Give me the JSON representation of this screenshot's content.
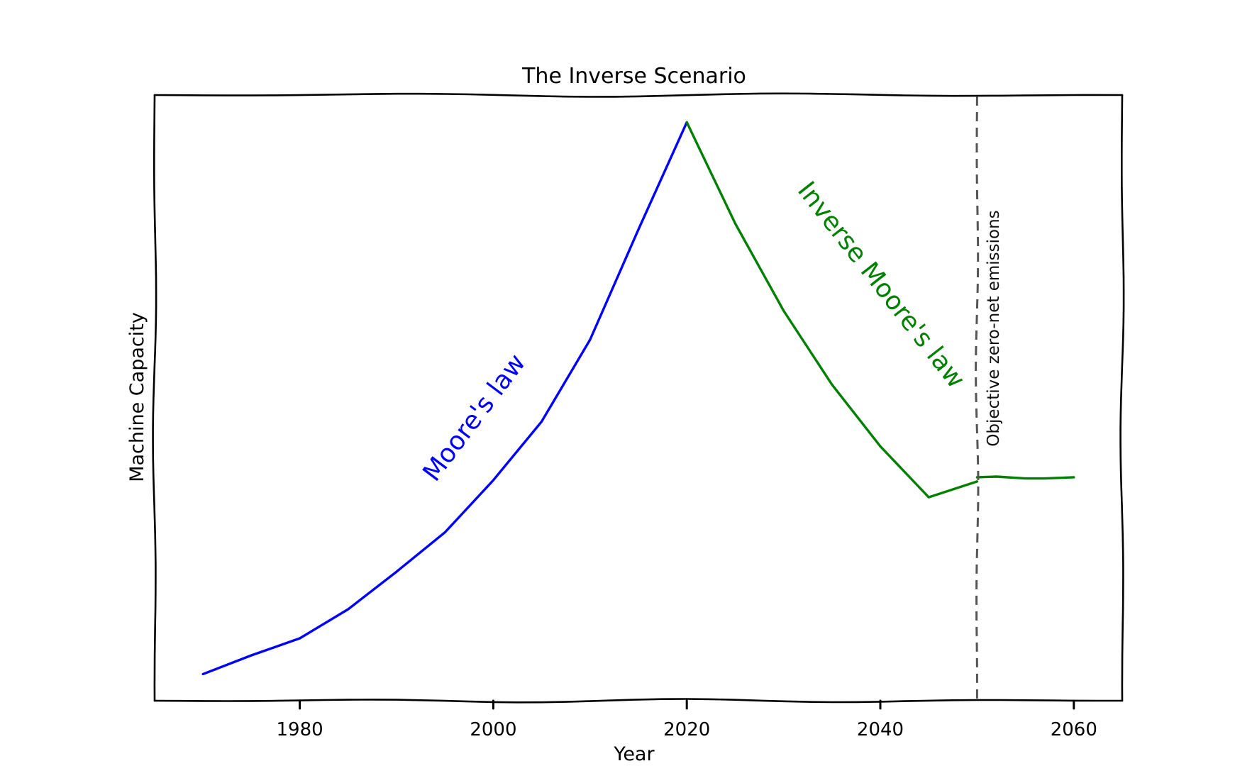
{
  "chart_data": {
    "type": "line",
    "title": "The Inverse Scenario",
    "xlabel": "Year",
    "ylabel": "Machine Capacity",
    "xlim": [
      1965,
      2065
    ],
    "ylim": [
      0,
      1
    ],
    "xticks": [
      1980,
      2000,
      2020,
      2040,
      2060
    ],
    "yticks": [],
    "grid": false,
    "series": [
      {
        "color": "#0000ff",
        "x": [
          1970,
          1975,
          1980,
          1985,
          1990,
          1995,
          2000,
          2005,
          2010,
          2015,
          2020
        ],
        "y": [
          0.044,
          0.075,
          0.103,
          0.151,
          0.213,
          0.278,
          0.364,
          0.461,
          0.596,
          0.778,
          0.955
        ]
      },
      {
        "color": "#008000",
        "x": [
          2020,
          2025,
          2030,
          2035,
          2040,
          2045,
          2050
        ],
        "y": [
          0.955,
          0.788,
          0.644,
          0.522,
          0.42,
          0.336,
          0.362
        ]
      },
      {
        "color": "#008000",
        "x": [
          2050,
          2052,
          2055,
          2057,
          2060
        ],
        "y": [
          0.369,
          0.37,
          0.367,
          0.367,
          0.369
        ]
      }
    ],
    "vlines": [
      {
        "x": 2050,
        "style": "dashed",
        "color": "#555555",
        "label": "Objective zero-net emissions"
      }
    ],
    "annotations": [
      {
        "text": "Moore's law",
        "color": "#0000ff",
        "x": 1997,
        "y": 0.55
      },
      {
        "text": "Inverse Moore's law",
        "color": "#008000",
        "x": 2037,
        "y": 0.74
      }
    ]
  }
}
